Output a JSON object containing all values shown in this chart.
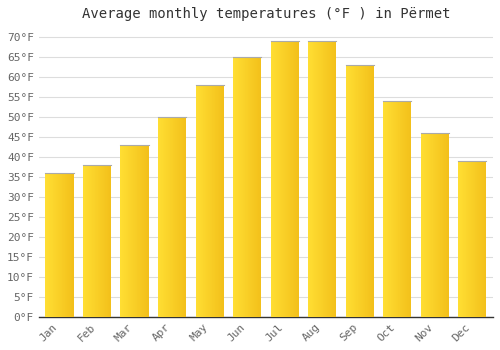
{
  "title": "Average monthly temperatures (°F ) in Përmet",
  "months": [
    "Jan",
    "Feb",
    "Mar",
    "Apr",
    "May",
    "Jun",
    "Jul",
    "Aug",
    "Sep",
    "Oct",
    "Nov",
    "Dec"
  ],
  "values": [
    36,
    38,
    43,
    50,
    58,
    65,
    69,
    69,
    63,
    54,
    46,
    39
  ],
  "bar_color_left": "#FFB300",
  "bar_color_right": "#FFA500",
  "bar_color_mid": "#FFCA28",
  "ylim": [
    0,
    72
  ],
  "yticks": [
    0,
    5,
    10,
    15,
    20,
    25,
    30,
    35,
    40,
    45,
    50,
    55,
    60,
    65,
    70
  ],
  "ytick_labels": [
    "0°F",
    "5°F",
    "10°F",
    "15°F",
    "20°F",
    "25°F",
    "30°F",
    "35°F",
    "40°F",
    "45°F",
    "50°F",
    "55°F",
    "60°F",
    "65°F",
    "70°F"
  ],
  "background_color": "#FFFFFF",
  "grid_color": "#DDDDDD",
  "title_fontsize": 10,
  "tick_fontsize": 8,
  "bar_width": 0.75
}
